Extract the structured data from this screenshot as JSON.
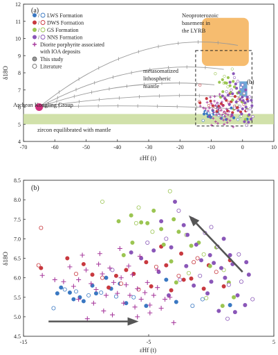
{
  "figure": {
    "panel_a_label": "(a)",
    "panel_b_label": "(b)",
    "inset_box_label": "(b)"
  },
  "chart_data": [
    {
      "type": "scatter",
      "panel": "(a)",
      "xlabel": "εHf (t)",
      "ylabel": "δ18O",
      "xlim": [
        -70,
        10
      ],
      "ylim": [
        4,
        12
      ],
      "xticks": [
        -70,
        -60,
        -50,
        -40,
        -30,
        -20,
        -10,
        0,
        10
      ],
      "yticks": [
        4,
        5,
        6,
        7,
        8,
        9,
        10,
        11,
        12
      ],
      "legend": {
        "placement": "top-left",
        "entries": [
          {
            "label": "LWS Formation",
            "color": "#3a78c2",
            "marker": "filled-and-open-circle"
          },
          {
            "label": "DWS Formation",
            "color": "#c8393f",
            "marker": "filled-and-open-circle"
          },
          {
            "label": "GS Formation",
            "color": "#9bc552",
            "marker": "filled-and-open-circle"
          },
          {
            "label": "NNS Formation",
            "color": "#8a57b8",
            "marker": "filled-and-open-circle"
          },
          {
            "label": "Diorite porphyrite associated with IOA deposits",
            "color": "#a83c9e",
            "marker": "plus"
          },
          {
            "label": "This study",
            "color": "#555555",
            "marker": "filled-circle"
          },
          {
            "label": "Literature",
            "color": "#555555",
            "marker": "open-circle"
          }
        ]
      },
      "annotations": {
        "archean": "Archean Kongling Group",
        "basement": "Neoproterozoic basement in the LYRB",
        "mantle": "metasomatized lithospheric mantle",
        "zircon_band": "zircon equilibrated with mantle"
      },
      "zircon_band_y": [
        5.0,
        5.6
      ],
      "archean_point": {
        "x": -65,
        "y": 6.0
      },
      "basement_field": {
        "x": [
          -13,
          2
        ],
        "y": [
          8.4,
          11.2
        ]
      },
      "mantle_bar": {
        "x": [
          -1,
          1.5
        ],
        "y": [
          6.6,
          7.5
        ]
      },
      "inset_box": {
        "x": [
          -15,
          3
        ],
        "y": [
          4.9,
          9.3
        ]
      },
      "mixing_curves": [
        {
          "from": [
            -65,
            6.0
          ],
          "to": [
            -1.5,
            9.6
          ]
        },
        {
          "from": [
            -65,
            6.0
          ],
          "to": [
            -6,
            8.2
          ]
        },
        {
          "from": [
            -65,
            6.0
          ],
          "to": [
            -9,
            7.3
          ]
        },
        {
          "from": [
            -65,
            6.0
          ],
          "to": [
            -1,
            6.6
          ]
        },
        {
          "from": [
            -65,
            6.0
          ],
          "to": [
            -2,
            5.9
          ]
        }
      ]
    },
    {
      "type": "scatter",
      "panel": "(b)",
      "xlabel": "εHf (t)",
      "ylabel": "δ18O",
      "xlim": [
        -15,
        5
      ],
      "ylim": [
        4.5,
        8.5
      ],
      "xticks": [
        -15,
        -5,
        5
      ],
      "yticks": [
        4.5,
        5.0,
        5.5,
        6.0,
        6.5,
        7.0,
        7.5,
        8.0,
        8.5
      ],
      "arrows": [
        {
          "from": [
            -13,
            4.88
          ],
          "to": [
            -5.8,
            4.88
          ]
        },
        {
          "from": [
            2.5,
            6.15
          ],
          "to": [
            -1.8,
            7.6
          ]
        }
      ],
      "series": [
        {
          "name": "LWS Formation",
          "color": "#3a78c2",
          "marker": "circle",
          "points": [
            [
              -12.6,
              5.22
            ],
            [
              -12.3,
              5.6
            ],
            [
              -12,
              5.75
            ],
            [
              -11.7,
              5.7
            ],
            [
              -11.3,
              5.62
            ],
            [
              -11,
              5.45
            ],
            [
              -10.8,
              5.65
            ],
            [
              -10.5,
              5.5
            ],
            [
              -10.2,
              5.4
            ],
            [
              -9.8,
              5.55
            ],
            [
              -9.5,
              5.8
            ],
            [
              -9.2,
              5.6
            ],
            [
              -8.8,
              5.62
            ],
            [
              -8.4,
              6.0
            ],
            [
              -8,
              5.72
            ],
            [
              -7.6,
              5.52
            ],
            [
              -7.3,
              5.85
            ],
            [
              -6.8,
              5.35
            ],
            [
              -6.2,
              5.5
            ],
            [
              -5.2,
              5.28
            ],
            [
              -2.8,
              5.38
            ],
            [
              -1.5,
              5.28
            ],
            [
              1.5,
              5.3
            ],
            [
              -3.6,
              5.95
            ],
            [
              -0.7,
              5.45
            ]
          ]
        },
        {
          "name": "DWS Formation",
          "color": "#c8393f",
          "marker": "circle",
          "points": [
            [
              -13.8,
              6.32
            ],
            [
              -13.6,
              6.25
            ],
            [
              -11.5,
              6.5
            ],
            [
              -10.8,
              6.1
            ],
            [
              -10.2,
              6.35
            ],
            [
              -9.5,
              6.08
            ],
            [
              -8.7,
              6.0
            ],
            [
              -8.2,
              5.75
            ],
            [
              -7.6,
              6.05
            ],
            [
              -7.2,
              5.85
            ],
            [
              -6.8,
              6.2
            ],
            [
              -6.2,
              6.1
            ],
            [
              -5.8,
              5.7
            ],
            [
              -5.2,
              6.4
            ],
            [
              -4.8,
              5.78
            ],
            [
              -4.4,
              6.28
            ],
            [
              -3.6,
              6.32
            ],
            [
              -3.2,
              5.68
            ],
            [
              -2.6,
              6.05
            ],
            [
              -2.2,
              5.95
            ],
            [
              -1.6,
              5.98
            ],
            [
              -1.1,
              6.5
            ],
            [
              -0.6,
              5.72
            ],
            [
              -0.2,
              6.32
            ],
            [
              0.4,
              6.15
            ],
            [
              1.0,
              5.78
            ],
            [
              1.5,
              6.45
            ],
            [
              -13.6,
              7.28
            ],
            [
              -4.0,
              6.8
            ],
            [
              -2.4,
              6.62
            ],
            [
              -1.4,
              6.4
            ]
          ]
        },
        {
          "name": "GS Formation",
          "color": "#9bc552",
          "marker": "circle",
          "points": [
            [
              -8.7,
              7.95
            ],
            [
              -7.4,
              7.45
            ],
            [
              -6.4,
              7.6
            ],
            [
              -6.0,
              7.4
            ],
            [
              -5.6,
              7.42
            ],
            [
              -5.1,
              7.4
            ],
            [
              -4.7,
              7.18
            ],
            [
              -4.0,
              7.25
            ],
            [
              -3.8,
              6.85
            ],
            [
              -3.3,
              8.22
            ],
            [
              -3.0,
              7.5
            ],
            [
              -2.6,
              7.18
            ],
            [
              -2.0,
              7.1
            ],
            [
              -1.6,
              6.82
            ],
            [
              -1.0,
              6.9
            ],
            [
              -0.6,
              6.6
            ],
            [
              -0.1,
              6.3
            ],
            [
              0.4,
              6.78
            ],
            [
              1.0,
              6.2
            ],
            [
              1.4,
              5.88
            ],
            [
              -7.0,
              6.58
            ],
            [
              -5.8,
              7.8
            ],
            [
              -4.6,
              7.72
            ],
            [
              -3.2,
              6.42
            ],
            [
              -1.8,
              6.12
            ],
            [
              -6.3,
              6.9
            ],
            [
              -2.8,
              5.88
            ],
            [
              -0.4,
              5.48
            ],
            [
              0.9,
              5.28
            ],
            [
              1.8,
              5.5
            ]
          ]
        },
        {
          "name": "NNS Formation",
          "color": "#8a57b8",
          "marker": "circle",
          "points": [
            [
              -7.9,
              6.2
            ],
            [
              -6.4,
              6.65
            ],
            [
              -5.6,
              6.5
            ],
            [
              -5.1,
              6.9
            ],
            [
              -4.6,
              6.7
            ],
            [
              -4.2,
              6.15
            ],
            [
              -3.6,
              7.0
            ],
            [
              -3.2,
              6.78
            ],
            [
              -2.9,
              7.95
            ],
            [
              -2.6,
              7.72
            ],
            [
              -2.2,
              7.35
            ],
            [
              -1.9,
              7.1
            ],
            [
              -1.5,
              7.5
            ],
            [
              -1.2,
              6.85
            ],
            [
              -0.8,
              6.45
            ],
            [
              -0.5,
              7.15
            ],
            [
              -0.1,
              6.58
            ],
            [
              0.2,
              6.38
            ],
            [
              0.5,
              6.8
            ],
            [
              0.8,
              6.25
            ],
            [
              1.1,
              6.0
            ],
            [
              1.4,
              5.82
            ],
            [
              1.7,
              6.35
            ],
            [
              2.1,
              5.55
            ],
            [
              2.4,
              5.9
            ],
            [
              2.7,
              5.3
            ],
            [
              3.0,
              6.08
            ],
            [
              3.3,
              5.45
            ],
            [
              -0.3,
              5.6
            ],
            [
              -1.4,
              5.8
            ],
            [
              -2.5,
              5.95
            ],
            [
              -3.4,
              5.55
            ],
            [
              0.6,
              5.15
            ],
            [
              1.3,
              4.95
            ],
            [
              1.9,
              5.12
            ],
            [
              0.0,
              5.9
            ],
            [
              2.2,
              6.6
            ],
            [
              -2.0,
              6.3
            ],
            [
              1.5,
              6.58
            ],
            [
              -0.9,
              6.05
            ],
            [
              2.8,
              6.4
            ],
            [
              -4.0,
              7.45
            ],
            [
              0.0,
              7.3
            ],
            [
              1.0,
              7.0
            ]
          ]
        },
        {
          "name": "Diorite porphyrite associated with IOA deposits",
          "color": "#a83c9e",
          "marker": "plus",
          "points": [
            [
              -13.5,
              6.06
            ],
            [
              -12.5,
              5.95
            ],
            [
              -11.8,
              5.9
            ],
            [
              -11.3,
              6.28
            ],
            [
              -11.0,
              5.78
            ],
            [
              -10.6,
              5.95
            ],
            [
              -10.3,
              6.58
            ],
            [
              -10.0,
              6.2
            ],
            [
              -9.6,
              5.85
            ],
            [
              -9.2,
              5.7
            ],
            [
              -9.0,
              6.35
            ],
            [
              -8.7,
              6.1
            ],
            [
              -8.4,
              5.55
            ],
            [
              -8.1,
              6.25
            ],
            [
              -7.8,
              5.88
            ],
            [
              -7.5,
              5.6
            ],
            [
              -7.2,
              6.0
            ],
            [
              -7.0,
              5.35
            ],
            [
              -6.8,
              5.82
            ],
            [
              -6.5,
              5.55
            ],
            [
              -6.3,
              6.08
            ],
            [
              -6.1,
              5.25
            ],
            [
              -5.9,
              5.72
            ],
            [
              -5.6,
              5.45
            ],
            [
              -5.3,
              5.62
            ],
            [
              -5.1,
              5.88
            ],
            [
              -4.9,
              5.3
            ],
            [
              -4.6,
              5.55
            ],
            [
              -4.3,
              5.75
            ],
            [
              -4.0,
              5.22
            ],
            [
              -3.7,
              5.45
            ],
            [
              -3.3,
              5.5
            ],
            [
              -3.0,
              4.85
            ],
            [
              -8.6,
              5.15
            ],
            [
              -7.9,
              5.05
            ],
            [
              -9.4,
              5.35
            ],
            [
              -6.6,
              6.3
            ],
            [
              -5.7,
              6.55
            ],
            [
              -4.3,
              6.2
            ],
            [
              -10.6,
              5.45
            ],
            [
              -8.9,
              6.62
            ],
            [
              -7.3,
              6.75
            ],
            [
              -9.9,
              4.95
            ],
            [
              -5.9,
              5.0
            ],
            [
              -4.9,
              5.1
            ]
          ]
        }
      ]
    }
  ]
}
